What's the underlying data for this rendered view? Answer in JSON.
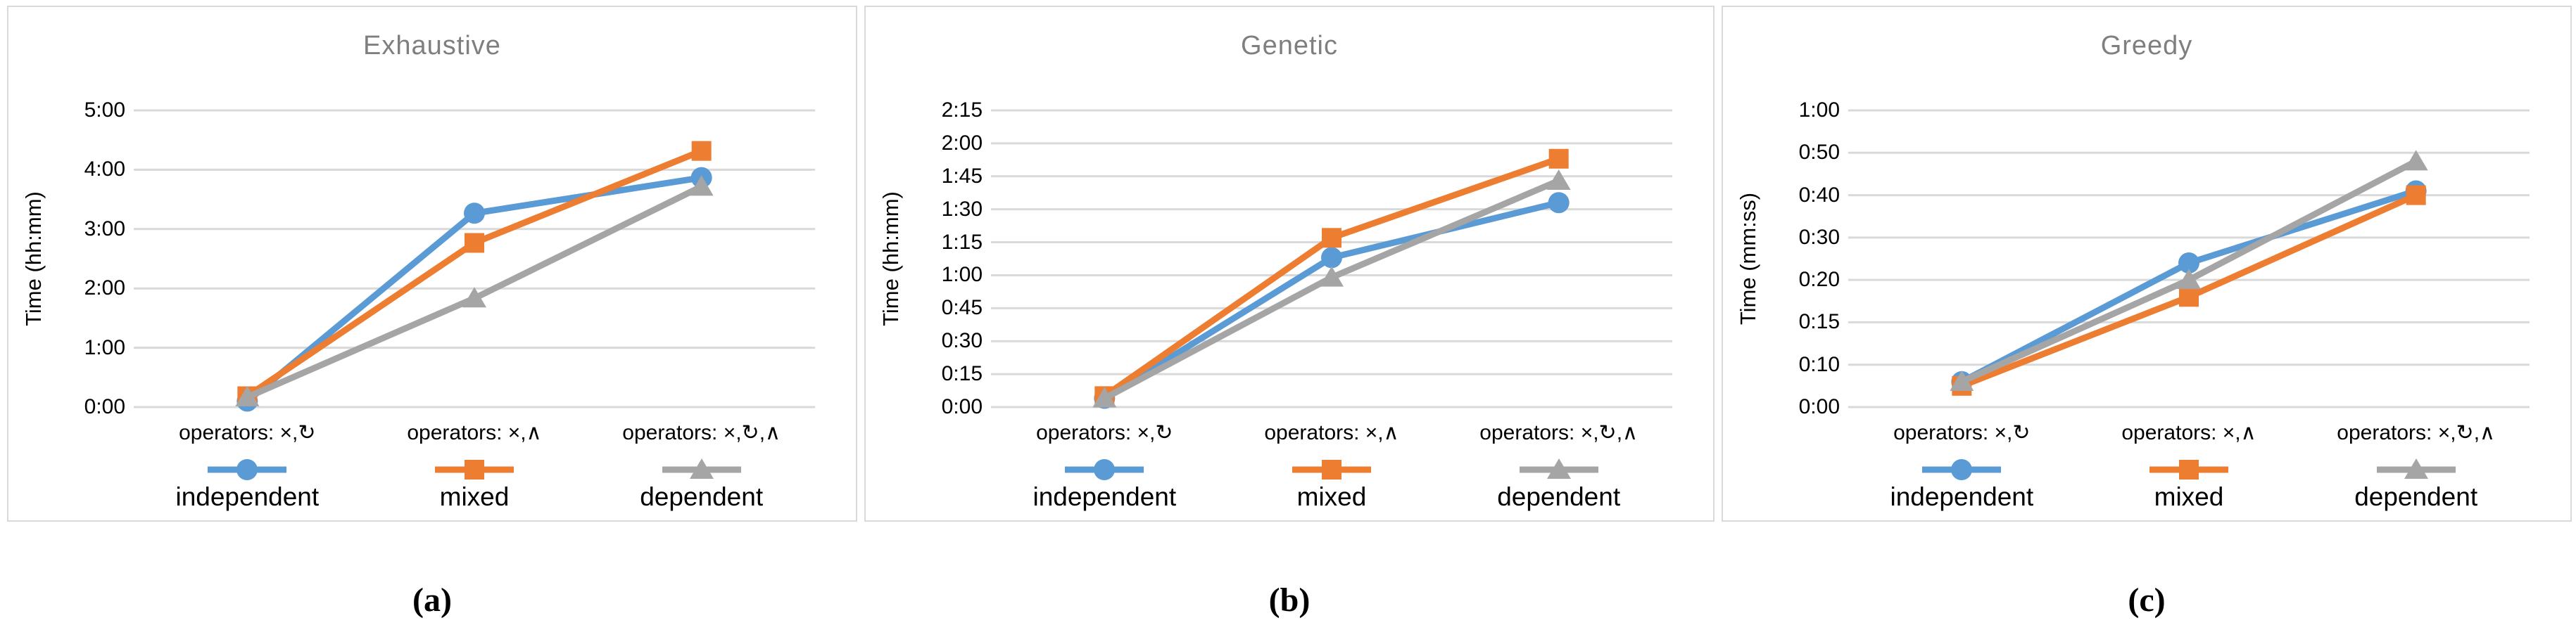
{
  "colors": {
    "grid": "#d9d9d9",
    "panel_border": "#d9d9d9",
    "title_text": "#7f7f7f",
    "axis_text": "#000000",
    "independent": "#5b9bd5",
    "mixed": "#ed7d31",
    "dependent": "#a5a5a5"
  },
  "chart_data": [
    {
      "type": "line",
      "title": "Exhaustive",
      "caption": "(a)",
      "ylabel": "Time (hh:mm)",
      "xlabel": "",
      "grid": "on",
      "legend_position": "bottom",
      "yticks": [
        "0:00",
        "1:00",
        "2:00",
        "3:00",
        "4:00",
        "5:00"
      ],
      "ytick_unit": "hours:minutes",
      "categories": [
        "operators: ×,↻",
        "operators: ×,∧",
        "operators: ×,↻,∧"
      ],
      "series": [
        {
          "name": "independent",
          "color": "#5b9bd5",
          "marker": "circle",
          "unit": "minutes",
          "values": [
            6,
            196,
            232
          ],
          "values_display": [
            "0:06",
            "3:16",
            "3:52"
          ]
        },
        {
          "name": "mixed",
          "color": "#ed7d31",
          "marker": "square",
          "unit": "minutes",
          "values": [
            11,
            166,
            259
          ],
          "values_display": [
            "0:11",
            "2:46",
            "4:19"
          ]
        },
        {
          "name": "dependent",
          "color": "#a5a5a5",
          "marker": "triangle",
          "unit": "minutes",
          "values": [
            10,
            110,
            223
          ],
          "values_display": [
            "0:10",
            "1:50",
            "3:43"
          ]
        }
      ]
    },
    {
      "type": "line",
      "title": "Genetic",
      "caption": "(b)",
      "ylabel": "Time (hh:mm)",
      "xlabel": "",
      "grid": "on",
      "legend_position": "bottom",
      "yticks": [
        "0:00",
        "0:15",
        "0:30",
        "0:45",
        "1:00",
        "1:15",
        "1:30",
        "1:45",
        "2:00",
        "2:15"
      ],
      "ytick_unit": "hours:minutes",
      "categories": [
        "operators: ×,↻",
        "operators: ×,∧",
        "operators: ×,↻,∧"
      ],
      "series": [
        {
          "name": "independent",
          "color": "#5b9bd5",
          "marker": "circle",
          "unit": "minutes",
          "values": [
            4,
            68,
            93
          ],
          "values_display": [
            "0:04",
            "1:08",
            "1:33"
          ]
        },
        {
          "name": "mixed",
          "color": "#ed7d31",
          "marker": "square",
          "unit": "minutes",
          "values": [
            5,
            77,
            113
          ],
          "values_display": [
            "0:05",
            "1:17",
            "1:53"
          ]
        },
        {
          "name": "dependent",
          "color": "#a5a5a5",
          "marker": "triangle",
          "unit": "minutes",
          "values": [
            4,
            59,
            103
          ],
          "values_display": [
            "0:04",
            "0:59",
            "1:43"
          ]
        }
      ]
    },
    {
      "type": "line",
      "title": "Greedy",
      "caption": "(c)",
      "ylabel": "Time (mm:ss)",
      "xlabel": "",
      "grid": "on",
      "legend_position": "bottom",
      "yticks": [
        "0:00",
        "0:10",
        "0:15",
        "0:20",
        "0:30",
        "0:40",
        "0:50",
        "1:00"
      ],
      "ytick_unit": "minutes:seconds",
      "categories": [
        "operators: ×,↻",
        "operators: ×,∧",
        "operators: ×,↻,∧"
      ],
      "series": [
        {
          "name": "independent",
          "color": "#5b9bd5",
          "marker": "circle",
          "unit": "seconds",
          "values": [
            6,
            24,
            41
          ],
          "values_display": [
            "0:06",
            "0:24",
            "0:41"
          ]
        },
        {
          "name": "mixed",
          "color": "#ed7d31",
          "marker": "square",
          "unit": "seconds",
          "values": [
            5,
            18,
            40
          ],
          "values_display": [
            "0:05",
            "0:18",
            "0:40"
          ]
        },
        {
          "name": "dependent",
          "color": "#a5a5a5",
          "marker": "triangle",
          "unit": "seconds",
          "values": [
            6,
            20,
            48
          ],
          "values_display": [
            "0:06",
            "0:20",
            "0:48"
          ]
        }
      ]
    }
  ]
}
